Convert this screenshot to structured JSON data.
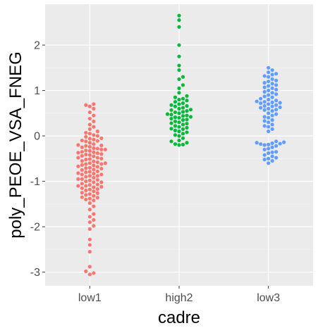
{
  "chart_data": {
    "type": "scatter",
    "subtype": "beeswarm",
    "title": "",
    "xlabel": "cadre",
    "ylabel": "poly_PEOE_VSA_FNEG",
    "categories": [
      "low1",
      "high2",
      "low3"
    ],
    "ylim": [
      -3.3,
      2.9
    ],
    "yticks": [
      -3,
      -2,
      -1,
      0,
      1,
      2
    ],
    "grid": true,
    "legend": "none",
    "panel_background": "#ebebeb",
    "series": [
      {
        "category": "low1",
        "color": "#f8766d",
        "values": [
          -3.05,
          -3.02,
          -2.98,
          -2.88,
          -2.55,
          -2.4,
          -2.28,
          -2.05,
          -1.98,
          -1.9,
          -1.85,
          -1.78,
          -1.72,
          -1.62,
          -1.55,
          -1.48,
          -1.42,
          -1.4,
          -1.38,
          -1.35,
          -1.32,
          -1.3,
          -1.28,
          -1.25,
          -1.22,
          -1.2,
          -1.18,
          -1.15,
          -1.12,
          -1.1,
          -1.08,
          -1.05,
          -1.02,
          -1.0,
          -0.98,
          -0.95,
          -0.92,
          -0.9,
          -0.88,
          -0.85,
          -0.82,
          -0.8,
          -0.78,
          -0.75,
          -0.72,
          -0.7,
          -0.68,
          -0.65,
          -0.62,
          -0.6,
          -0.58,
          -0.55,
          -0.52,
          -0.5,
          -0.48,
          -0.45,
          -0.42,
          -0.4,
          -0.38,
          -0.35,
          -0.32,
          -0.3,
          -0.28,
          -0.25,
          -0.22,
          -0.2,
          -0.18,
          -0.15,
          -0.12,
          -0.1,
          -0.08,
          -0.05,
          -0.02,
          0.0,
          0.02,
          0.05,
          0.1,
          0.15,
          0.2,
          0.25,
          0.32,
          0.38,
          0.45,
          0.52,
          0.6,
          0.65,
          0.68,
          0.7,
          -0.95,
          -1.1,
          -0.85,
          -0.62,
          -0.48,
          -0.37,
          -0.33,
          -0.27,
          -0.44,
          -0.56,
          -0.67,
          -0.74,
          -0.88,
          -1.02,
          -1.17,
          -1.26,
          -1.36,
          -0.79,
          -0.6,
          -0.41,
          -0.3,
          -0.21,
          -0.11,
          -0.06,
          0.07,
          -0.24,
          -0.36,
          -0.51,
          -0.64,
          -0.71,
          -0.83,
          -0.97,
          -1.07,
          -1.13
        ]
      },
      {
        "category": "high2",
        "color": "#00ba38",
        "values": [
          -0.2,
          -0.18,
          -0.15,
          -0.12,
          -0.1,
          -0.05,
          0.0,
          0.02,
          0.05,
          0.08,
          0.1,
          0.12,
          0.15,
          0.18,
          0.2,
          0.22,
          0.25,
          0.28,
          0.3,
          0.32,
          0.35,
          0.38,
          0.4,
          0.42,
          0.45,
          0.48,
          0.5,
          0.52,
          0.55,
          0.58,
          0.6,
          0.62,
          0.65,
          0.68,
          0.7,
          0.72,
          0.75,
          0.78,
          0.8,
          0.82,
          0.85,
          0.88,
          0.95,
          1.05,
          1.12,
          1.25,
          1.3,
          1.45,
          1.55,
          1.75,
          2.0,
          2.4,
          2.55,
          2.65,
          0.44,
          0.36,
          0.27,
          0.47,
          0.57,
          0.16,
          -0.19,
          0.41,
          0.53,
          0.66
        ]
      },
      {
        "category": "low3",
        "color": "#619cff",
        "values": [
          -0.6,
          -0.55,
          -0.5,
          -0.45,
          -0.42,
          -0.38,
          -0.35,
          -0.3,
          -0.25,
          -0.2,
          -0.18,
          -0.15,
          -0.12,
          0.1,
          0.15,
          0.2,
          0.25,
          0.3,
          0.35,
          0.4,
          0.45,
          0.5,
          0.55,
          0.58,
          0.62,
          0.65,
          0.68,
          0.7,
          0.72,
          0.75,
          0.78,
          0.8,
          0.85,
          0.9,
          0.95,
          1.0,
          1.05,
          1.1,
          1.15,
          1.2,
          1.25,
          1.3,
          1.35,
          1.4,
          1.45,
          1.5,
          -0.16,
          -0.17,
          -0.14,
          -0.19,
          0.6,
          0.63,
          0.66,
          0.74,
          0.82,
          1.02,
          1.12,
          0.42,
          0.33,
          0.22,
          -0.48,
          -0.52,
          -0.28,
          0.73,
          0.92,
          1.17,
          1.32,
          0.57,
          0.48,
          0.87,
          0.97,
          1.07,
          1.22,
          0.76,
          -0.36,
          -0.22,
          1.37
        ]
      }
    ]
  }
}
